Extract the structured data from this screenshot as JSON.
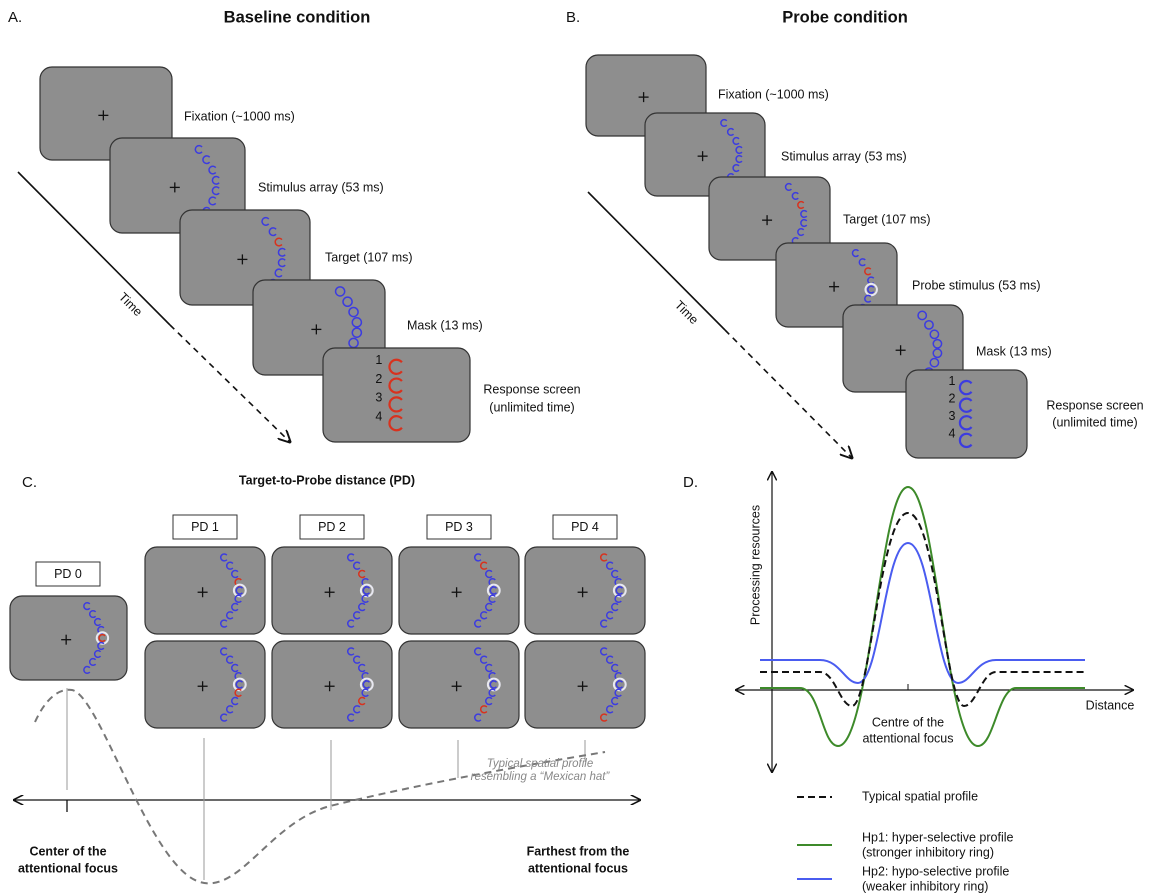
{
  "panel_a": {
    "label": "A.",
    "title": "Baseline condition",
    "time": "Time",
    "steps": [
      "Fixation (~1000 ms)",
      "Stimulus array (53 ms)",
      "Target (107 ms)",
      "Mask (13 ms)"
    ],
    "response": [
      "Response screen",
      "(unlimited time)"
    ],
    "response_numbers": [
      "1",
      "2",
      "3",
      "4"
    ]
  },
  "panel_b": {
    "label": "B.",
    "title": "Probe condition",
    "time": "Time",
    "steps": [
      "Fixation (~1000 ms)",
      "Stimulus array (53 ms)",
      "Target (107 ms)",
      "Probe stimulus (53 ms)",
      "Mask (13 ms)"
    ],
    "response": [
      "Response screen",
      "(unlimited time)"
    ],
    "response_numbers": [
      "1",
      "2",
      "3",
      "4"
    ]
  },
  "panel_c": {
    "label": "C.",
    "title": "Target-to-Probe distance (PD)",
    "distances": [
      "PD 0",
      "PD 1",
      "PD 2",
      "PD 3",
      "PD 4"
    ],
    "curve_label": [
      "Typical spatial profile",
      "resembling a “Mexican hat”"
    ],
    "axis_left": [
      "Center of the",
      "attentional focus"
    ],
    "axis_right": [
      "Farthest from the",
      "attentional focus"
    ]
  },
  "panel_d": {
    "label": "D.",
    "y_label": "Processing resources",
    "x_label": "Distance",
    "center_label": [
      "Centre of the",
      "attentional focus"
    ],
    "legend": [
      [
        "Typical spatial profile"
      ],
      [
        "Hp1: hyper-selective profile",
        "(stronger inhibitory ring)"
      ],
      [
        "Hp2: hypo-selective profile",
        "(weaker inhibitory ring)"
      ]
    ]
  }
}
